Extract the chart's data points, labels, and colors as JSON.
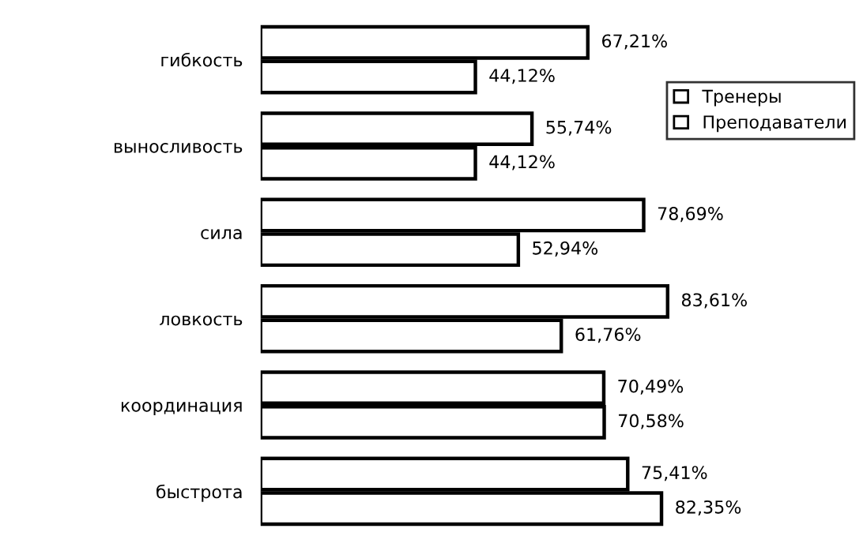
{
  "chart_data": {
    "type": "bar",
    "orientation": "horizontal",
    "categories": [
      "гибкость",
      "выносливость",
      "сила",
      "ловкость",
      "координация",
      "быстрота"
    ],
    "series": [
      {
        "name": "Тренеры",
        "color": "#ffffff",
        "values": [
          67.21,
          55.74,
          78.69,
          83.61,
          70.49,
          75.41
        ],
        "value_labels": [
          "67,21%",
          "55,74%",
          "78,69%",
          "83,61%",
          "70,49%",
          "75,41%"
        ]
      },
      {
        "name": "Преподаватели",
        "color": "#ffffff",
        "values": [
          44.12,
          44.12,
          52.94,
          61.76,
          70.58,
          82.35
        ],
        "value_labels": [
          "44,12%",
          "44,12%",
          "52,94%",
          "61,76%",
          "70,58%",
          "82,35%"
        ]
      }
    ],
    "legend": "top right",
    "grid": false,
    "tick_labels": "y"
  }
}
